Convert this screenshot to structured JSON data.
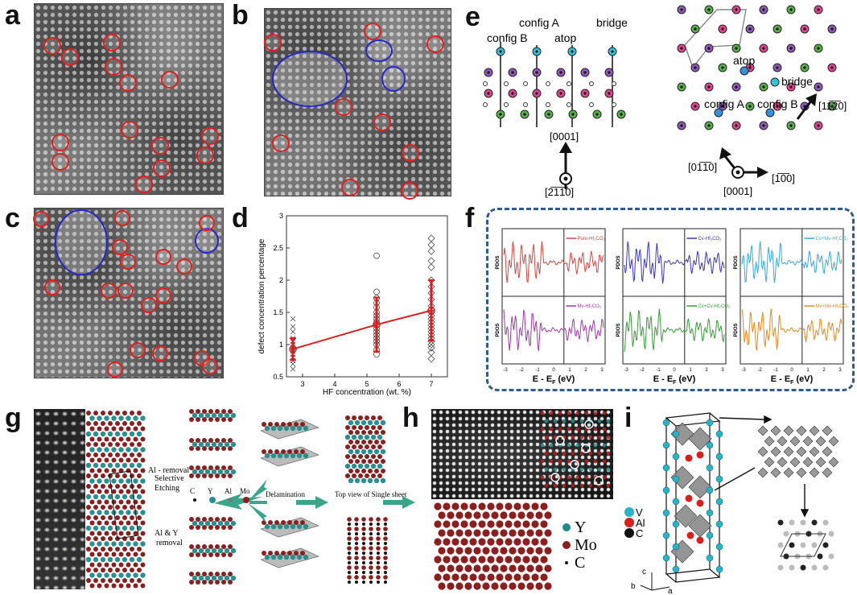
{
  "labels": {
    "a": "a",
    "b": "b",
    "c": "c",
    "d": "d",
    "e": "e",
    "f": "f",
    "g": "g",
    "h": "h",
    "i": "i"
  },
  "panel_e": {
    "side": {
      "config_b": "config B",
      "config_a": "config A",
      "atop": "atop",
      "bridge": "bridge",
      "dir_up": "[0001]",
      "dir_view": "[2̅1̅1̅0]"
    },
    "top": {
      "atop": "atop",
      "bridge": "bridge",
      "config_a": "config A",
      "config_b": "config B",
      "dir_right": "[1̅0̅0]",
      "dir_upright": "[11̅2̅0]",
      "dir_upleft": "[01̅1̅0]",
      "dir_out": "[0001]"
    }
  },
  "panel_f": {
    "row1": [
      {
        "legend": "Pure-Hf₂CO₂",
        "ylabel": "PDOS",
        "color": "#d64545"
      },
      {
        "legend": "Cv-Hf₂CO₂",
        "ylabel": "PDOS",
        "color": "#3a36b8"
      },
      {
        "legend": "Cv+Mv-Hf₂CO₂",
        "ylabel": "PDOS",
        "color": "#3aa9d6"
      }
    ],
    "row2": [
      {
        "legend": "Mv-Hf₂CO₂",
        "ylabel": "PDOS",
        "color": "#9b3aa6"
      },
      {
        "legend": "Cv+Cv-Hf₂CO₂",
        "ylabel": "PDOS",
        "color": "#3a9a3a"
      },
      {
        "legend": "Mv+Mv-Hf₂CO₂",
        "ylabel": "PDOS",
        "color": "#e08a22"
      }
    ],
    "xlabel": "E - E",
    "xlabel_sub": "F",
    "xlabel_unit": " (eV)",
    "xticks": [
      "-3",
      "-2",
      "-1",
      "0",
      "1",
      "2",
      "3"
    ]
  },
  "panel_g": {
    "al_removal": "Al - removal",
    "selective": "Selective",
    "etching": "Etching",
    "al_y_removal": "Al & Y",
    "removal": "removal",
    "legend": [
      "C",
      "Y",
      "Al",
      "Mo"
    ],
    "delamination": "Delamination",
    "top_view": "Top view of Single sheet"
  },
  "panel_h": {
    "legend": [
      {
        "sym": "Y",
        "color": "#1f8a8a"
      },
      {
        "sym": "Mo",
        "color": "#8a1f1f"
      },
      {
        "sym": "C",
        "color": "#111111"
      }
    ]
  },
  "panel_i": {
    "legend": [
      {
        "sym": "V",
        "color": "#2ab3c6"
      },
      {
        "sym": "Al",
        "color": "#d62020"
      },
      {
        "sym": "C",
        "color": "#111111"
      }
    ],
    "axes": {
      "a": "a",
      "b": "b",
      "c": "c"
    }
  },
  "chart_data": {
    "type": "scatter",
    "xlabel": "HF concentration (wt. %)",
    "ylabel": "defect concentration percentage",
    "xlim": [
      2.5,
      7.5
    ],
    "ylim": [
      0.5,
      3
    ],
    "xticks": [
      3,
      4,
      5,
      6,
      7
    ],
    "yticks": [
      0.5,
      1,
      1.5,
      2,
      2.5,
      3
    ],
    "mean_series": {
      "x": [
        2.7,
        5.3,
        7.0
      ],
      "y": [
        0.93,
        1.31,
        1.53
      ],
      "err": [
        0.17,
        0.42,
        0.47
      ],
      "color": "#d62020"
    },
    "raw_series": [
      {
        "x": 2.7,
        "marker": "x",
        "values": [
          0.62,
          0.7,
          0.75,
          0.8,
          0.85,
          0.9,
          0.93,
          0.96,
          1.0,
          1.05,
          1.1,
          1.2,
          1.28,
          1.4
        ]
      },
      {
        "x": 5.3,
        "marker": "o",
        "values": [
          0.85,
          0.92,
          1.0,
          1.05,
          1.1,
          1.15,
          1.2,
          1.25,
          1.3,
          1.35,
          1.4,
          1.45,
          1.5,
          1.58,
          1.65,
          1.72,
          1.82,
          2.38
        ]
      },
      {
        "x": 7.0,
        "marker": "diamond",
        "values": [
          0.78,
          0.88,
          0.95,
          1.0,
          1.05,
          1.1,
          1.15,
          1.2,
          1.25,
          1.3,
          1.35,
          1.4,
          1.45,
          1.5,
          1.55,
          1.6,
          1.7,
          1.8,
          1.9,
          2.0,
          2.2,
          2.3,
          2.45,
          2.55,
          2.65
        ]
      }
    ]
  }
}
